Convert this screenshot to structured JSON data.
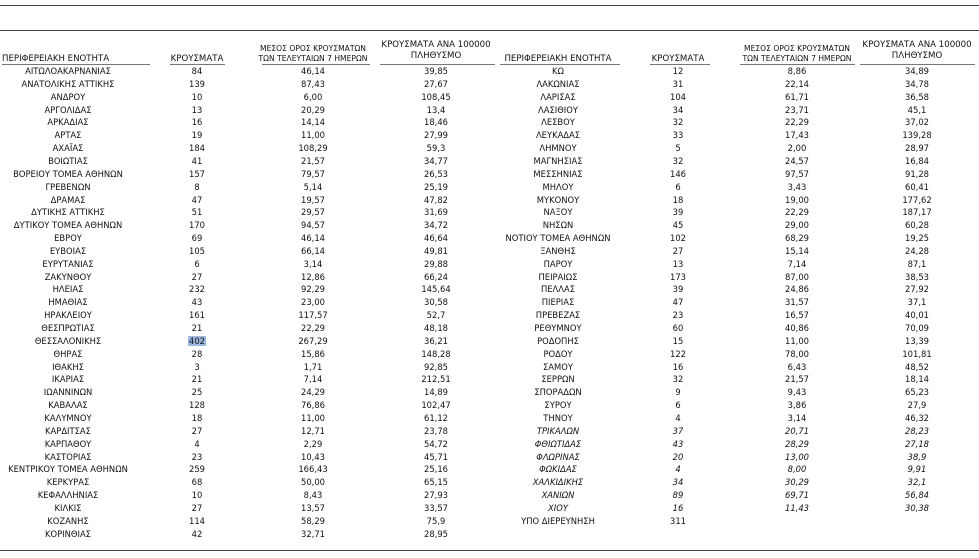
{
  "tables": [
    {
      "header": [
        [
          "ΠΕΡΙΦΕΡΕΙΑΚΗ ΕΝΟΤΗΤΑ"
        ],
        [
          "ΚΡΟΥΣΜΑΤΑ"
        ],
        [
          "ΜΕΣΟΣ ΟΡΟΣ ΚΡΟΥΣΜΑΤΩΝ",
          "ΤΩΝ ΤΕΛΕΥΤΑΙΩΝ 7 ΗΜΕΡΩΝ"
        ],
        [
          "ΚΡΟΥΣΜΑΤΑ ΑΝΑ 100000",
          "ΠΛΗΘΥΣΜΟ"
        ]
      ],
      "rows": [
        {
          "cells": [
            "ΑΙΤΩΛΟΑΚΑΡΝΑΝΙΑΣ",
            "84",
            "46,14",
            "39,85"
          ]
        },
        {
          "cells": [
            "ΑΝΑΤΟΛΙΚΗΣ ΑΤΤΙΚΗΣ",
            "139",
            "87,43",
            "27,67"
          ]
        },
        {
          "cells": [
            "ΑΝΔΡΟΥ",
            "10",
            "6,00",
            "108,45"
          ]
        },
        {
          "cells": [
            "ΑΡΓΟΛΙΔΑΣ",
            "13",
            "20,29",
            "13,4"
          ]
        },
        {
          "cells": [
            "ΑΡΚΑΔΙΑΣ",
            "16",
            "14,14",
            "18,46"
          ]
        },
        {
          "cells": [
            "ΑΡΤΑΣ",
            "19",
            "11,00",
            "27,99"
          ]
        },
        {
          "cells": [
            "ΑΧΑΪΑΣ",
            "184",
            "108,29",
            "59,3"
          ]
        },
        {
          "cells": [
            "ΒΟΙΩΤΙΑΣ",
            "41",
            "21,57",
            "34,77"
          ]
        },
        {
          "cells": [
            "ΒΟΡΕΙΟΥ ΤΟΜΕΑ ΑΘΗΝΩΝ",
            "157",
            "79,57",
            "26,53"
          ]
        },
        {
          "cells": [
            "ΓΡΕΒΕΝΩΝ",
            "8",
            "5,14",
            "25,19"
          ]
        },
        {
          "cells": [
            "ΔΡΑΜΑΣ",
            "47",
            "19,57",
            "47,82"
          ]
        },
        {
          "cells": [
            "ΔΥΤΙΚΗΣ ΑΤΤΙΚΗΣ",
            "51",
            "29,57",
            "31,69"
          ]
        },
        {
          "cells": [
            "ΔΥΤΙΚΟΥ ΤΟΜΕΑ ΑΘΗΝΩΝ",
            "170",
            "94,57",
            "34,72"
          ]
        },
        {
          "cells": [
            "ΕΒΡΟΥ",
            "69",
            "46,14",
            "46,64"
          ]
        },
        {
          "cells": [
            "ΕΥΒΟΙΑΣ",
            "105",
            "66,14",
            "49,81"
          ]
        },
        {
          "cells": [
            "ΕΥΡΥΤΑΝΙΑΣ",
            "6",
            "3,14",
            "29,88"
          ]
        },
        {
          "cells": [
            "ΖΑΚΥΝΘΟΥ",
            "27",
            "12,86",
            "66,24"
          ]
        },
        {
          "cells": [
            "ΗΛΕΙΑΣ",
            "232",
            "92,29",
            "145,64"
          ]
        },
        {
          "cells": [
            "ΗΜΑΘΙΑΣ",
            "43",
            "23,00",
            "30,58"
          ]
        },
        {
          "cells": [
            "ΗΡΑΚΛΕΙΟΥ",
            "161",
            "117,57",
            "52,7"
          ]
        },
        {
          "cells": [
            "ΘΕΣΠΡΩΤΙΑΣ",
            "21",
            "22,29",
            "48,18"
          ]
        },
        {
          "cells": [
            "ΘΕΣΣΑΛΟΝΙΚΗΣ",
            "402",
            "267,29",
            "36,21"
          ],
          "selected": 1
        },
        {
          "cells": [
            "ΘΗΡΑΣ",
            "28",
            "15,86",
            "148,28"
          ]
        },
        {
          "cells": [
            "ΙΘΑΚΗΣ",
            "3",
            "1,71",
            "92,85"
          ]
        },
        {
          "cells": [
            "ΙΚΑΡΙΑΣ",
            "21",
            "7,14",
            "212,51"
          ]
        },
        {
          "cells": [
            "ΙΩΑΝΝΙΝΩΝ",
            "25",
            "24,29",
            "14,89"
          ]
        },
        {
          "cells": [
            "ΚΑΒΑΛΑΣ",
            "128",
            "76,86",
            "102,47"
          ]
        },
        {
          "cells": [
            "ΚΑΛΥΜΝΟΥ",
            "18",
            "11,00",
            "61,12"
          ]
        },
        {
          "cells": [
            "ΚΑΡΔΙΤΣΑΣ",
            "27",
            "12,71",
            "23,78"
          ]
        },
        {
          "cells": [
            "ΚΑΡΠΑΘΟΥ",
            "4",
            "2,29",
            "54,72"
          ]
        },
        {
          "cells": [
            "ΚΑΣΤΟΡΙΑΣ",
            "23",
            "10,43",
            "45,71"
          ]
        },
        {
          "cells": [
            "ΚΕΝΤΡΙΚΟΥ ΤΟΜΕΑ ΑΘΗΝΩΝ",
            "259",
            "166,43",
            "25,16"
          ]
        },
        {
          "cells": [
            "ΚΕΡΚΥΡΑΣ",
            "68",
            "50,00",
            "65,15"
          ]
        },
        {
          "cells": [
            "ΚΕΦΑΛΛΗΝΙΑΣ",
            "10",
            "8,43",
            "27,93"
          ]
        },
        {
          "cells": [
            "ΚΙΛΚΙΣ",
            "27",
            "13,57",
            "33,57"
          ]
        },
        {
          "cells": [
            "ΚΟΖΑΝΗΣ",
            "114",
            "58,29",
            "75,9"
          ]
        },
        {
          "cells": [
            "ΚΟΡΙΝΘΙΑΣ",
            "42",
            "32,71",
            "28,95"
          ]
        }
      ]
    },
    {
      "header": [
        [
          "ΠΕΡΙΦΕΡΕΙΑΚΗ ΕΝΟΤΗΤΑ"
        ],
        [
          "ΚΡΟΥΣΜΑΤΑ"
        ],
        [
          "ΜΕΣΟΣ ΟΡΟΣ ΚΡΟΥΣΜΑΤΩΝ",
          "ΤΩΝ ΤΕΛΕΥΤΑΙΩΝ 7 ΗΜΕΡΩΝ"
        ],
        [
          "ΚΡΟΥΣΜΑΤΑ ΑΝΑ 100000",
          "ΠΛΗΘΥΣΜΟ"
        ]
      ],
      "rows": [
        {
          "cells": [
            "ΚΩ",
            "12",
            "8,86",
            "34,89"
          ]
        },
        {
          "cells": [
            "ΛΑΚΩΝΙΑΣ",
            "31",
            "22,14",
            "34,78"
          ]
        },
        {
          "cells": [
            "ΛΑΡΙΣΑΣ",
            "104",
            "61,71",
            "36,58"
          ]
        },
        {
          "cells": [
            "ΛΑΣΙΘΙΟΥ",
            "34",
            "23,71",
            "45,1"
          ]
        },
        {
          "cells": [
            "ΛΕΣΒΟΥ",
            "32",
            "22,29",
            "37,02"
          ]
        },
        {
          "cells": [
            "ΛΕΥΚΑΔΑΣ",
            "33",
            "17,43",
            "139,28"
          ]
        },
        {
          "cells": [
            "ΛΗΜΝΟΥ",
            "5",
            "2,00",
            "28,97"
          ]
        },
        {
          "cells": [
            "ΜΑΓΝΗΣΙΑΣ",
            "32",
            "24,57",
            "16,84"
          ]
        },
        {
          "cells": [
            "ΜΕΣΣΗΝΙΑΣ",
            "146",
            "97,57",
            "91,28"
          ]
        },
        {
          "cells": [
            "ΜΗΛΟΥ",
            "6",
            "3,43",
            "60,41"
          ]
        },
        {
          "cells": [
            "ΜΥΚΟΝΟΥ",
            "18",
            "19,00",
            "177,62"
          ]
        },
        {
          "cells": [
            "ΝΑΞΟΥ",
            "39",
            "22,29",
            "187,17"
          ]
        },
        {
          "cells": [
            "ΝΗΣΩΝ",
            "45",
            "29,00",
            "60,28"
          ]
        },
        {
          "cells": [
            "ΝΟΤΙΟΥ ΤΟΜΕΑ ΑΘΗΝΩΝ",
            "102",
            "68,29",
            "19,25"
          ]
        },
        {
          "cells": [
            "ΞΑΝΘΗΣ",
            "27",
            "15,14",
            "24,28"
          ]
        },
        {
          "cells": [
            "ΠΑΡΟΥ",
            "13",
            "7,14",
            "87,1"
          ]
        },
        {
          "cells": [
            "ΠΕΙΡΑΙΩΣ",
            "173",
            "87,00",
            "38,53"
          ]
        },
        {
          "cells": [
            "ΠΕΛΛΑΣ",
            "39",
            "24,86",
            "27,92"
          ]
        },
        {
          "cells": [
            "ΠΙΕΡΙΑΣ",
            "47",
            "31,57",
            "37,1"
          ]
        },
        {
          "cells": [
            "ΠΡΕΒΕΖΑΣ",
            "23",
            "16,57",
            "40,01"
          ]
        },
        {
          "cells": [
            "ΡΕΘΥΜΝΟΥ",
            "60",
            "40,86",
            "70,09"
          ]
        },
        {
          "cells": [
            "ΡΟΔΟΠΗΣ",
            "15",
            "11,00",
            "13,39"
          ]
        },
        {
          "cells": [
            "ΡΟΔΟΥ",
            "122",
            "78,00",
            "101,81"
          ]
        },
        {
          "cells": [
            "ΣΑΜΟΥ",
            "16",
            "6,43",
            "48,52"
          ]
        },
        {
          "cells": [
            "ΣΕΡΡΩΝ",
            "32",
            "21,57",
            "18,14"
          ]
        },
        {
          "cells": [
            "ΣΠΟΡΑΔΩΝ",
            "9",
            "9,43",
            "65,23"
          ]
        },
        {
          "cells": [
            "ΣΥΡΟΥ",
            "6",
            "3,86",
            "27,9"
          ]
        },
        {
          "cells": [
            "ΤΗΝΟΥ",
            "4",
            "3,14",
            "46,32"
          ]
        },
        {
          "cells": [
            "ΤΡΙΚΑΛΩΝ",
            "37",
            "20,71",
            "28,23"
          ],
          "italic": true
        },
        {
          "cells": [
            "ΦΘΙΩΤΙΔΑΣ",
            "43",
            "28,29",
            "27,18"
          ],
          "italic": true
        },
        {
          "cells": [
            "ΦΛΩΡΙΝΑΣ",
            "20",
            "13,00",
            "38,9"
          ],
          "italic": true
        },
        {
          "cells": [
            "ΦΩΚΙΔΑΣ",
            "4",
            "8,00",
            "9,91"
          ],
          "italic": true
        },
        {
          "cells": [
            "ΧΑΛΚΙΔΙΚΗΣ",
            "34",
            "30,29",
            "32,1"
          ],
          "italic": true
        },
        {
          "cells": [
            "ΧΑΝΙΩΝ",
            "89",
            "69,71",
            "56,84"
          ],
          "italic": true
        },
        {
          "cells": [
            "ΧΙΟΥ",
            "16",
            "11,43",
            "30,38"
          ],
          "italic": true
        },
        {
          "cells": [
            "ΥΠΟ ΔΙΕΡΕΥΝΗΣΗ",
            "311"
          ]
        }
      ]
    }
  ]
}
